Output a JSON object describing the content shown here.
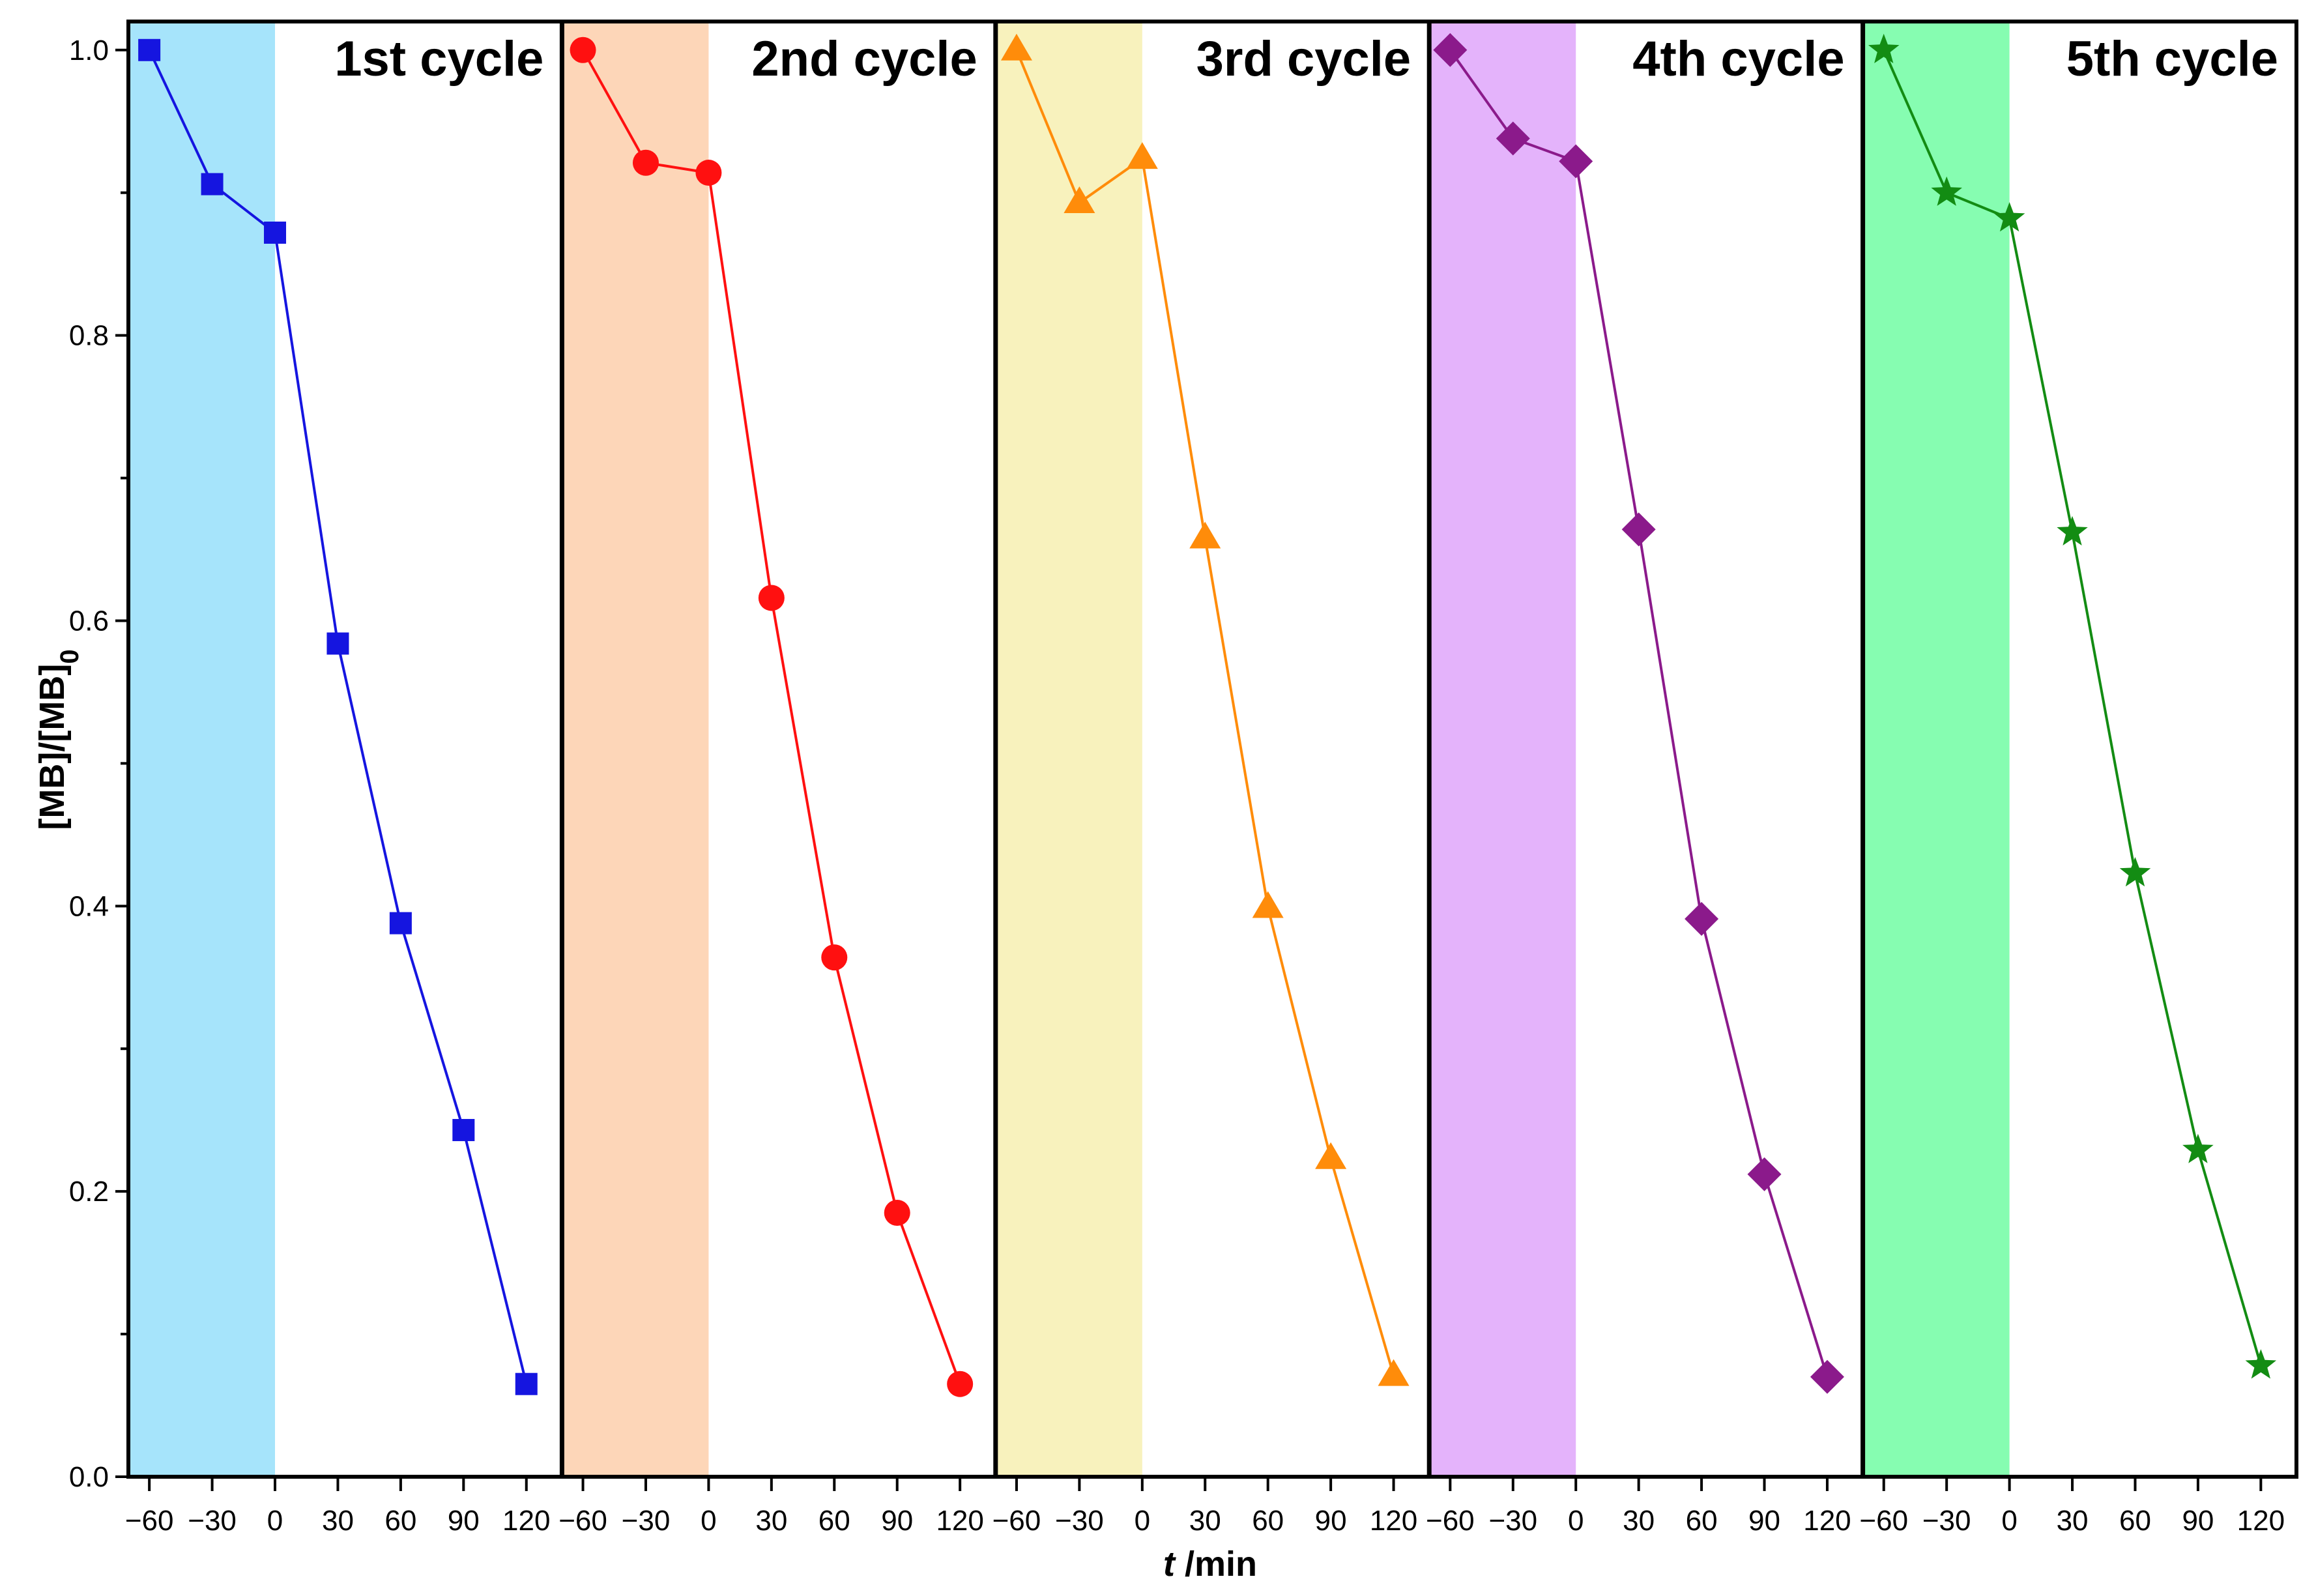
{
  "chart_data": {
    "type": "line",
    "ylabel_main": "[MB]/[MB]",
    "ylabel_sub": "0",
    "xlabel_var": "t",
    "xlabel_unit": " /min",
    "ylim": [
      0,
      1.02
    ],
    "yticks": [
      0.0,
      0.2,
      0.4,
      0.6,
      0.8,
      1.0
    ],
    "ytick_labels": [
      "0.0",
      "0.2",
      "0.4",
      "0.6",
      "0.8",
      "1.0"
    ],
    "x": [
      -60,
      -30,
      0,
      30,
      60,
      90,
      120
    ],
    "xlim": [
      -70,
      137
    ],
    "xticks": [
      -60,
      -30,
      0,
      30,
      60,
      90,
      120
    ],
    "xtick_labels": [
      "-60",
      "-30",
      "0",
      "30",
      "60",
      "90",
      "120"
    ],
    "dark_period": [
      -70,
      0
    ],
    "panels": [
      {
        "title": "1st cycle",
        "name": "1st cycle",
        "color": "#1515e0",
        "band": "#a6e4fb",
        "marker": "square",
        "values": [
          1.0,
          0.906,
          0.872,
          0.584,
          0.388,
          0.243,
          0.065
        ]
      },
      {
        "title": "2nd cycle",
        "name": "2nd cycle",
        "color": "#ff1010",
        "band": "#fdd6b8",
        "marker": "circle",
        "values": [
          1.0,
          0.921,
          0.914,
          0.616,
          0.364,
          0.185,
          0.065
        ]
      },
      {
        "title": "3rd cycle",
        "name": "3rd cycle",
        "color": "#ff8c0a",
        "band": "#f8f2bd",
        "marker": "triangle",
        "values": [
          1.0,
          0.893,
          0.924,
          0.658,
          0.399,
          0.223,
          0.071
        ]
      },
      {
        "title": "4th cycle",
        "name": "4th cycle",
        "color": "#8b1a8b",
        "band": "#e4b3fb",
        "marker": "diamond",
        "values": [
          1.0,
          0.938,
          0.922,
          0.664,
          0.391,
          0.212,
          0.07
        ]
      },
      {
        "title": "5th cycle",
        "name": "5th cycle",
        "color": "#138c13",
        "band": "#86fdb1",
        "marker": "star",
        "values": [
          1.0,
          0.9,
          0.882,
          0.662,
          0.423,
          0.229,
          0.078
        ]
      }
    ]
  }
}
